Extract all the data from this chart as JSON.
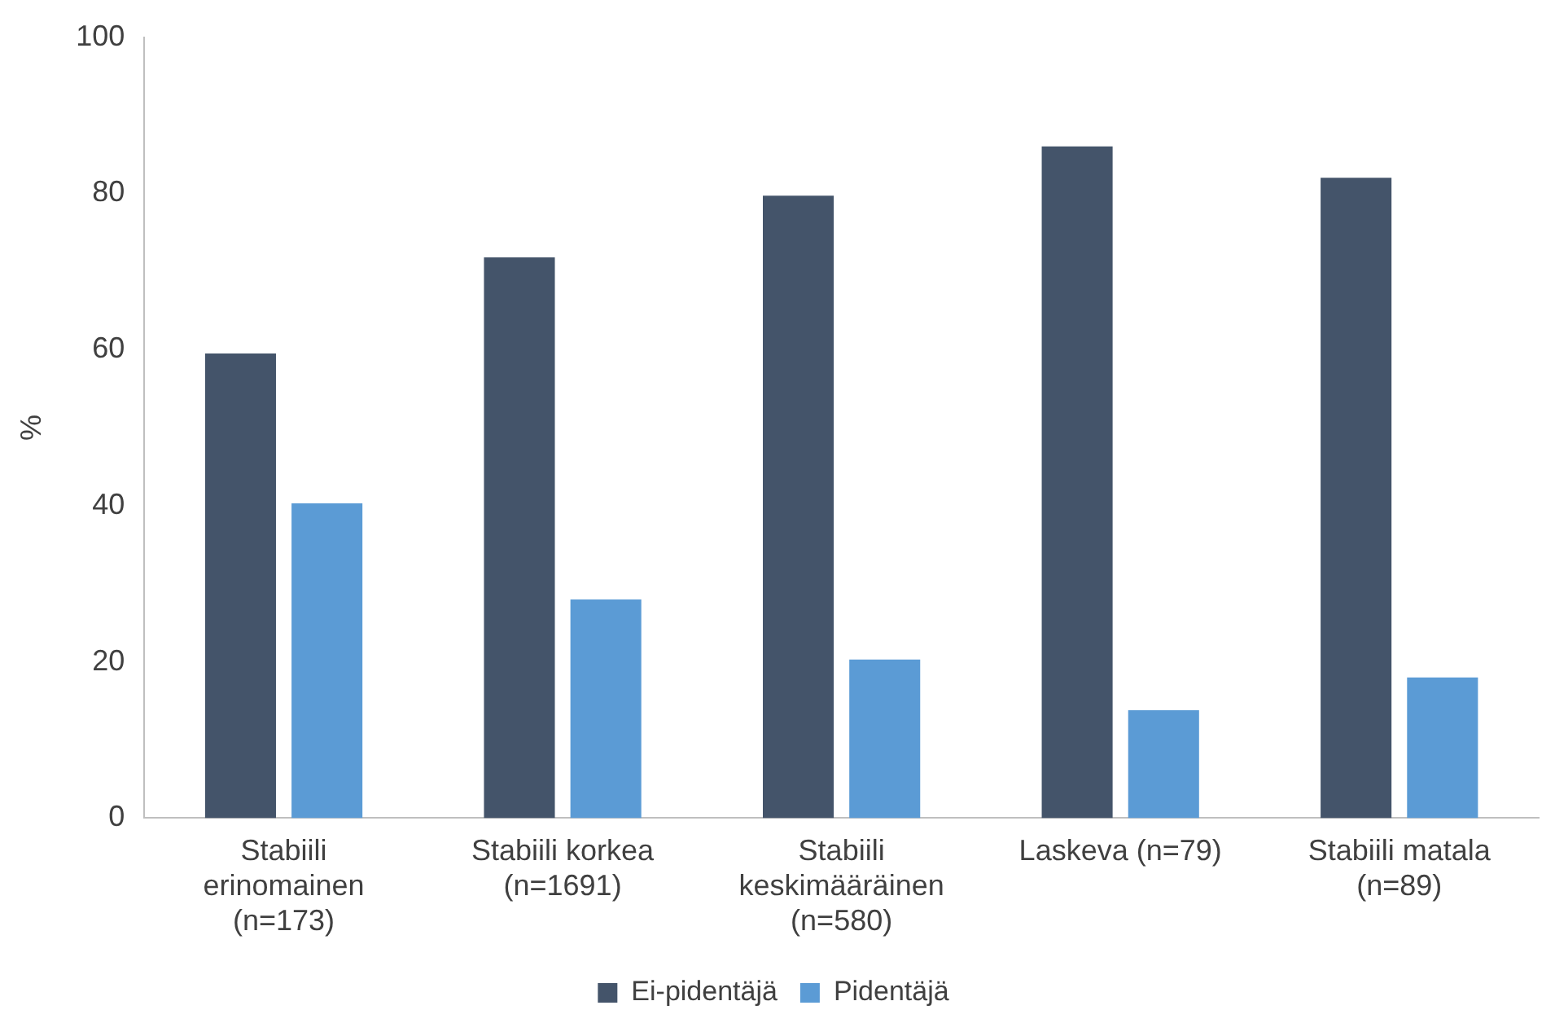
{
  "chart_data": {
    "type": "bar",
    "ylabel": "%",
    "categories": [
      "Stabiili erinomainen (n=173)",
      "Stabiili korkea (n=1691)",
      "Stabiili keskimääräinen (n=580)",
      "Laskeva (n=79)",
      "Stabiili matala (n=89)"
    ],
    "series": [
      {
        "name": "Ei-pidentäjä",
        "color": "#44546a",
        "values": [
          59.5,
          71.8,
          79.7,
          86.0,
          82.0
        ]
      },
      {
        "name": "Pidentäjä",
        "color": "#5b9bd5",
        "values": [
          40.3,
          28.0,
          20.3,
          13.8,
          18.0
        ]
      }
    ],
    "ylim": [
      0,
      100
    ],
    "yticks": [
      0,
      20,
      40,
      60,
      80,
      100
    ],
    "grid": false,
    "legend": "bottom"
  }
}
